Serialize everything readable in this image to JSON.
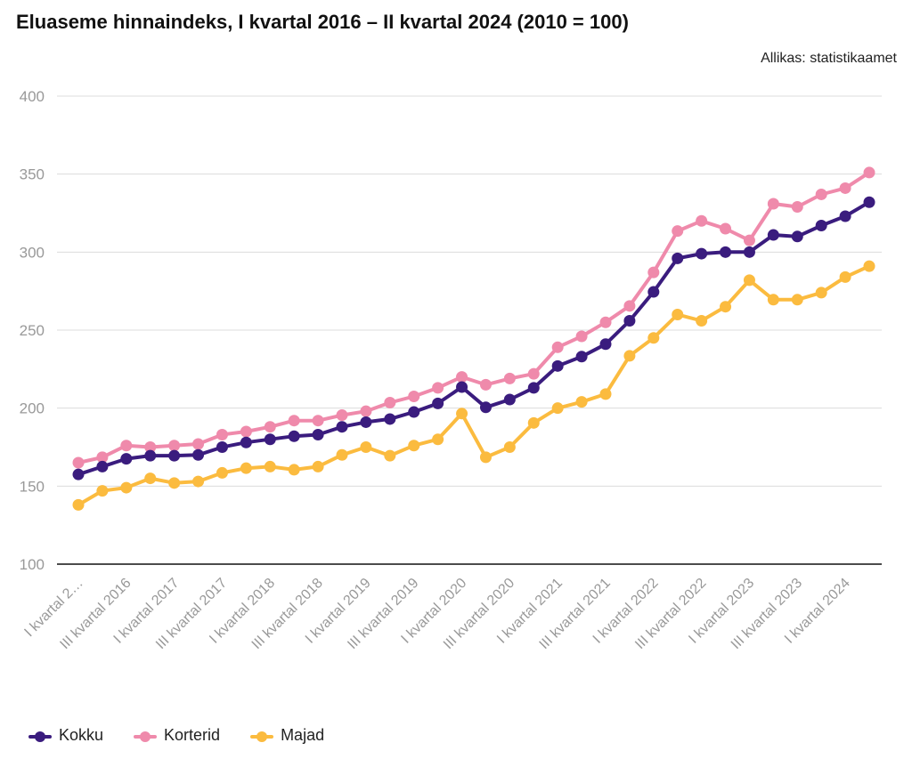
{
  "title": "Eluaseme hinnaindeks, I kvartal 2016 – II kvartal 2024 (2010 = 100)",
  "source": "Allikas: statistikaamet",
  "chart_data": {
    "type": "line",
    "title": "Eluaseme hinnaindeks, I kvartal 2016 – II kvartal 2024 (2010 = 100)",
    "ylim": [
      100,
      400
    ],
    "yticks": [
      "100",
      "150",
      "200",
      "250",
      "300",
      "350",
      "400"
    ],
    "grid": true,
    "legend_position": "bottom-left",
    "x_tick_labels": [
      "I kvartal 2…",
      "III kvartal 2016",
      "I kvartal 2017",
      "III kvartal 2017",
      "I kvartal 2018",
      "III kvartal 2018",
      "I kvartal 2019",
      "III kvartal 2019",
      "I kvartal 2020",
      "III kvartal 2020",
      "I kvartal 2021",
      "III kvartal 2021",
      "I kvartal 2022",
      "III kvartal 2022",
      "I kvartal 2023",
      "III kvartal 2023",
      "I kvartal 2024"
    ],
    "x": [
      "I kvartal 2016",
      "II kvartal 2016",
      "III kvartal 2016",
      "IV kvartal 2016",
      "I kvartal 2017",
      "II kvartal 2017",
      "III kvartal 2017",
      "IV kvartal 2017",
      "I kvartal 2018",
      "II kvartal 2018",
      "III kvartal 2018",
      "IV kvartal 2018",
      "I kvartal 2019",
      "II kvartal 2019",
      "III kvartal 2019",
      "IV kvartal 2019",
      "I kvartal 2020",
      "II kvartal 2020",
      "III kvartal 2020",
      "IV kvartal 2020",
      "I kvartal 2021",
      "II kvartal 2021",
      "III kvartal 2021",
      "IV kvartal 2021",
      "I kvartal 2022",
      "II kvartal 2022",
      "III kvartal 2022",
      "IV kvartal 2022",
      "I kvartal 2023",
      "II kvartal 2023",
      "III kvartal 2023",
      "IV kvartal 2023",
      "I kvartal 2024",
      "II kvartal 2024"
    ],
    "series": [
      {
        "name": "Kokku",
        "color": "#3a1c7e",
        "values": [
          157.5,
          162.5,
          167.5,
          169.5,
          169.5,
          170,
          175,
          178,
          180,
          182,
          183,
          188,
          191,
          193,
          197.5,
          203,
          213.5,
          200.5,
          205.5,
          213,
          227,
          233,
          241,
          256,
          274.5,
          296,
          299,
          300,
          300,
          311,
          310,
          317,
          323,
          332
        ]
      },
      {
        "name": "Korterid",
        "color": "#ef8aab",
        "values": [
          165,
          168.5,
          176,
          175,
          176,
          177,
          183,
          185,
          188,
          192,
          192,
          195.5,
          198,
          203.5,
          207.5,
          213,
          220,
          215,
          219,
          222,
          239,
          246,
          255,
          265.5,
          287,
          313.5,
          320,
          315,
          307.5,
          331,
          329,
          337,
          341,
          351
        ]
      },
      {
        "name": "Majad",
        "color": "#fbbb3f",
        "values": [
          138,
          147,
          149,
          155,
          152,
          153,
          158.5,
          161.5,
          162.5,
          160.5,
          162.5,
          170,
          175,
          169.5,
          176,
          180,
          196.5,
          168.5,
          175,
          190.5,
          200,
          204,
          209,
          233.5,
          245,
          260,
          256,
          265,
          282,
          269.5,
          269.5,
          274,
          284,
          291
        ]
      }
    ]
  }
}
